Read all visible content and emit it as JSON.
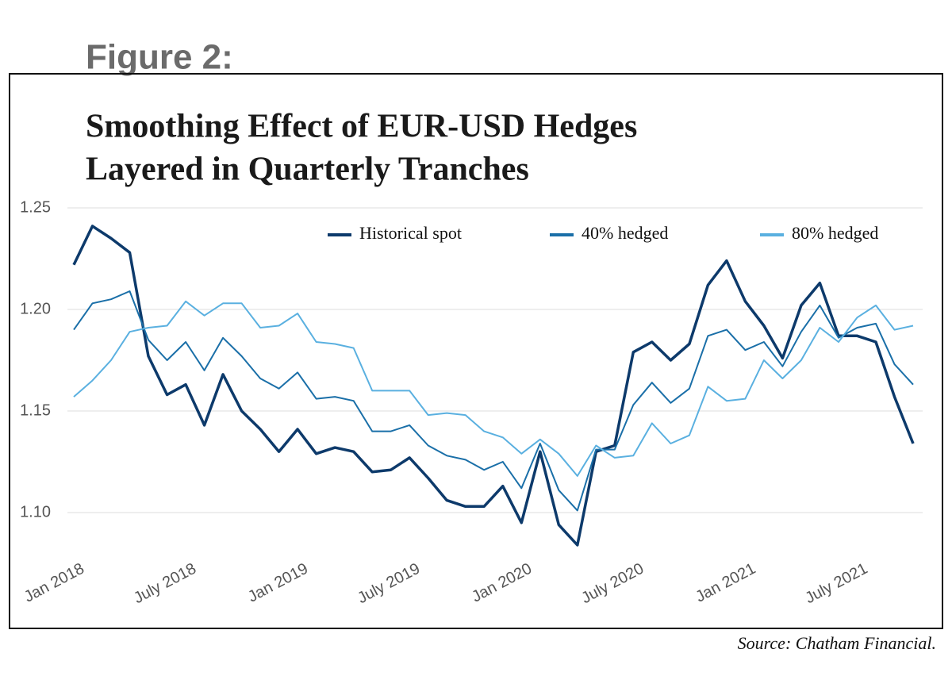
{
  "figure_label": "Figure 2:",
  "source": "Source: Chatham Financial.",
  "chart_data": {
    "type": "line",
    "title": [
      "Smoothing Effect of EUR-USD Hedges",
      "Layered in Quarterly Tranches"
    ],
    "categories": [
      "Jan 2018",
      null,
      null,
      null,
      null,
      null,
      "July 2018",
      null,
      null,
      null,
      null,
      null,
      "Jan 2019",
      null,
      null,
      null,
      null,
      null,
      "July 2019",
      null,
      null,
      null,
      null,
      null,
      "Jan 2020",
      null,
      null,
      null,
      null,
      null,
      "July 2020",
      null,
      null,
      null,
      null,
      null,
      "Jan 2021",
      null,
      null,
      null,
      null,
      null,
      "July 2021",
      null,
      null,
      null
    ],
    "series": [
      {
        "name": "Historical spot",
        "color": "#0d3a6b",
        "values": [
          1.222,
          1.241,
          1.235,
          1.228,
          1.177,
          1.158,
          1.163,
          1.143,
          1.168,
          1.15,
          1.141,
          1.13,
          1.141,
          1.129,
          1.132,
          1.13,
          1.12,
          1.121,
          1.127,
          1.117,
          1.106,
          1.103,
          1.103,
          1.113,
          1.095,
          1.13,
          1.094,
          1.084,
          1.13,
          1.133,
          1.179,
          1.184,
          1.175,
          1.183,
          1.212,
          1.224,
          1.204,
          1.192,
          1.176,
          1.202,
          1.213,
          1.187,
          1.187,
          1.184,
          1.157,
          1.134
        ]
      },
      {
        "name": "40% hedged",
        "color": "#1a6fa8",
        "values": [
          1.19,
          1.203,
          1.205,
          1.209,
          1.185,
          1.175,
          1.184,
          1.17,
          1.186,
          1.177,
          1.166,
          1.161,
          1.169,
          1.156,
          1.157,
          1.155,
          1.14,
          1.14,
          1.143,
          1.133,
          1.128,
          1.126,
          1.121,
          1.125,
          1.112,
          1.134,
          1.111,
          1.101,
          1.131,
          1.131,
          1.153,
          1.164,
          1.154,
          1.161,
          1.187,
          1.19,
          1.18,
          1.184,
          1.172,
          1.189,
          1.202,
          1.186,
          1.191,
          1.193,
          1.173,
          1.163
        ]
      },
      {
        "name": "80% hedged",
        "color": "#5ab0e0",
        "values": [
          1.157,
          1.165,
          1.175,
          1.189,
          1.191,
          1.192,
          1.204,
          1.197,
          1.203,
          1.203,
          1.191,
          1.192,
          1.198,
          1.184,
          1.183,
          1.181,
          1.16,
          1.16,
          1.16,
          1.148,
          1.149,
          1.148,
          1.14,
          1.137,
          1.129,
          1.136,
          1.129,
          1.118,
          1.133,
          1.127,
          1.128,
          1.144,
          1.134,
          1.138,
          1.162,
          1.155,
          1.156,
          1.175,
          1.166,
          1.175,
          1.191,
          1.184,
          1.196,
          1.202,
          1.19,
          1.192
        ]
      }
    ],
    "ylim": [
      1.08,
      1.25
    ],
    "yticks": [
      {
        "value": 1.1,
        "label": "1.10"
      },
      1.15,
      {
        "value": 1.2,
        "label": "1.20"
      },
      1.25
    ],
    "grid": true,
    "legend": "top-right"
  }
}
